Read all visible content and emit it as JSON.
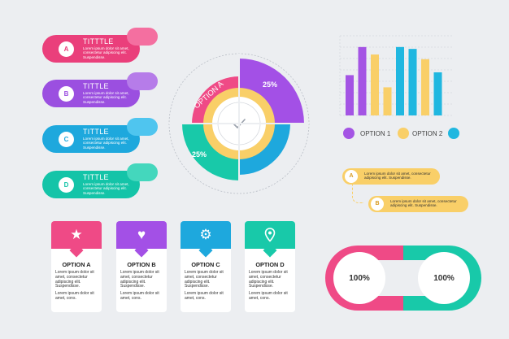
{
  "ribbons": [
    {
      "letter": "A",
      "title": "TITTTLE",
      "text": "Lorem ipsum dolor sit amet, consectetur adipiscing elit. Suspendisse.",
      "color": "#ea3f7b",
      "curl": "#f46fa0"
    },
    {
      "letter": "B",
      "title": "TITTLE",
      "text": "Lorem ipsum dolor sit amet, consectetur adipiscing elit. Suspendisse.",
      "color": "#9b4fe0",
      "curl": "#b67ce9"
    },
    {
      "letter": "C",
      "title": "TITTLE",
      "text": "Lorem ipsum dolor sit amet, consectetur adipiscing elit. Suspendisse.",
      "color": "#1ea8dd",
      "curl": "#4fc5ef"
    },
    {
      "letter": "D",
      "title": "TITTLE",
      "text": "Lorem ipsum dolor sit amet, consectetur adipiscing elit. Suspendisse.",
      "color": "#14c4a8",
      "curl": "#44d7bd"
    }
  ],
  "donut": {
    "label_option": "OPTION A",
    "pct_top": "25%",
    "pct_bottom": "25%",
    "colors": {
      "pink": "#ef4a86",
      "purple": "#a350e6",
      "teal": "#18c9a9",
      "blue": "#1ea8dd",
      "yellow": "#f9cf68"
    },
    "center_icon": "checkmark-icon"
  },
  "chart_data": {
    "type": "bar",
    "categories": [
      "",
      "",
      "",
      "",
      "",
      "",
      "",
      "",
      ""
    ],
    "series": [
      {
        "name": "OPTION 1",
        "color": "#a454e4",
        "values": [
          43,
          73,
          0,
          0,
          0,
          0,
          0,
          0,
          0
        ]
      },
      {
        "name": "OPTION 2",
        "color": "#f9cf68",
        "values": [
          0,
          0,
          65,
          30,
          0,
          0,
          0,
          60,
          0
        ]
      },
      {
        "name": "",
        "color": "#20b7e0",
        "values": [
          0,
          0,
          0,
          0,
          73,
          71,
          0,
          0,
          46
        ]
      }
    ],
    "bars_in_order": [
      {
        "value": 43,
        "color": "#a454e4"
      },
      {
        "value": 73,
        "color": "#a454e4"
      },
      {
        "value": 65,
        "color": "#f9cf68"
      },
      {
        "value": 30,
        "color": "#f9cf68"
      },
      {
        "value": 73,
        "color": "#20b7e0"
      },
      {
        "value": 71,
        "color": "#20b7e0"
      },
      {
        "value": 60,
        "color": "#f9cf68"
      },
      {
        "value": 46,
        "color": "#20b7e0"
      }
    ],
    "ylim": [
      0,
      85
    ],
    "grid": true,
    "legend": [
      {
        "label": "OPTION 1",
        "color": "#a454e4"
      },
      {
        "label": "OPTION 2",
        "color": "#f9cf68"
      },
      {
        "label": "",
        "color": "#20b7e0"
      }
    ]
  },
  "callouts": [
    {
      "letter": "A",
      "text": "Lorem ipsum dolor sit amet, consectetur adipiscing elit. Suspendisse."
    },
    {
      "letter": "B",
      "text": "Lorem ipsum dolor sit amet, consectetur adipiscing elit. Suspendisse."
    }
  ],
  "cards": [
    {
      "name": "OPTION A",
      "icon": "star-icon",
      "glyph": "★",
      "color": "#ef4a86",
      "desc1": "Lorem ipsum dolor sit amet, consectetur adipiscing elit. Suspendisse.",
      "desc2": "Lorem ipsum dolor sit amet, cons."
    },
    {
      "name": "OPTION B",
      "icon": "heart-icon",
      "glyph": "♥",
      "color": "#a350e6",
      "desc1": "Lorem ipsum dolor sit amet, consectetur adipiscing elit. Suspendisse.",
      "desc2": "Lorem ipsum dolor sit amet, cons."
    },
    {
      "name": "OPTION C",
      "icon": "gear-icon",
      "glyph": "⚙",
      "color": "#1ea8dd",
      "desc1": "Lorem ipsum dolor sit amet, consectetur adipiscing elit. Suspendisse.",
      "desc2": "Lorem ipsum dolor sit amet, cons."
    },
    {
      "name": "OPTION D",
      "icon": "location-pin-icon",
      "glyph": "⊙",
      "color": "#18c9a9",
      "desc1": "Lorem ipsum dolor sit amet, consectetur adipiscing elit. Suspendisse.",
      "desc2": "Lorem ipsum dolor sit amet, cons."
    }
  ],
  "toggle": {
    "left_label": "100%",
    "right_label": "100%",
    "left_color": "#ef4a86",
    "right_color": "#18c9a9"
  }
}
